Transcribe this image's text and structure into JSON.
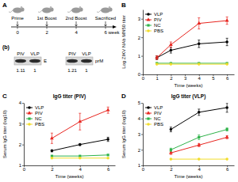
{
  "diagram": {
    "label": "A",
    "timeline": {
      "events": [
        "Prime",
        "1st Boost",
        "2nd Boost",
        "Sacrificed"
      ],
      "ticks": [
        "0",
        "2",
        "4",
        "6 week"
      ]
    },
    "blot": {
      "label": "(b)",
      "panels": [
        {
          "lanes": [
            "PIV",
            "VLP"
          ],
          "band": "E",
          "ratios": [
            1.11,
            1
          ]
        },
        {
          "lanes": [
            "PIV",
            "VLP"
          ],
          "band": "prM",
          "ratios": [
            1.21,
            1
          ]
        }
      ]
    }
  },
  "chart_data": [
    {
      "type": "line",
      "annotations": [
        "B"
      ],
      "x_label": "Time (weeks)",
      "y_label": "Log ZIKV NAb MN50 titer",
      "x": [
        1,
        2,
        4,
        6
      ],
      "xlim": [
        0,
        6.5
      ],
      "xticks": [
        0,
        1,
        2,
        3,
        4,
        5,
        6
      ],
      "ylim": [
        0,
        3.5
      ],
      "yticks": [
        0,
        1,
        2,
        3
      ],
      "legend": "top-left",
      "series": [
        {
          "name": "VLP",
          "color": "#000000",
          "marker": "circle",
          "values": [
            0.9,
            1.3,
            1.65,
            1.75
          ],
          "errors": [
            0.1,
            0.15,
            0.2,
            0.2
          ]
        },
        {
          "name": "PIV",
          "color": "#e8251f",
          "marker": "triangle",
          "values": [
            0.9,
            1.6,
            2.75,
            2.9
          ],
          "errors": [
            0.1,
            0.15,
            0.3,
            0.2
          ]
        },
        {
          "name": "NC",
          "color": "#2fb34a",
          "marker": "square",
          "values": [
            0.6,
            0.6,
            0.6,
            0.6
          ]
        },
        {
          "name": "PBS",
          "color": "#f2dd2c",
          "marker": "circle",
          "values": [
            0.55,
            0.55,
            0.55,
            0.55
          ]
        }
      ]
    },
    {
      "type": "line",
      "title": "IgG titer (PIV)",
      "annotations": [
        "C"
      ],
      "x_label": "Time (weeks)",
      "y_label": "Serum IgG titer (log10)",
      "x": [
        2,
        4,
        6
      ],
      "xlim": [
        0,
        6.5
      ],
      "xticks": [
        0,
        2,
        4,
        6
      ],
      "ylim": [
        1,
        4
      ],
      "yticks": [
        1,
        2,
        3,
        4
      ],
      "legend": "top-left",
      "series": [
        {
          "name": "VLP",
          "color": "#000000",
          "marker": "circle",
          "values": [
            1.7,
            2.0,
            2.25
          ],
          "errors": [
            0.05,
            0.05,
            0.1
          ]
        },
        {
          "name": "PIV",
          "color": "#e8251f",
          "marker": "triangle",
          "values": [
            2.3,
            3.1,
            3.65
          ],
          "errors": [
            0.25,
            0.4,
            0.15
          ]
        },
        {
          "name": "NC",
          "color": "#2fb34a",
          "marker": "square",
          "values": [
            1.45,
            1.45,
            1.5
          ]
        },
        {
          "name": "PBS",
          "color": "#f2dd2c",
          "marker": "circle",
          "values": [
            1.35,
            1.35,
            1.35
          ]
        }
      ]
    },
    {
      "type": "line",
      "title": "IgG titer (VLP)",
      "annotations": [
        "D"
      ],
      "x_label": "Time (weeks)",
      "y_label": "Serum IgG titer (log10)",
      "x": [
        2,
        4,
        6
      ],
      "xlim": [
        0,
        6.5
      ],
      "xticks": [
        0,
        2,
        4,
        6
      ],
      "ylim": [
        1,
        5
      ],
      "yticks": [
        1,
        2,
        3,
        4,
        5
      ],
      "legend": "top-left",
      "series": [
        {
          "name": "VLP",
          "color": "#000000",
          "marker": "circle",
          "values": [
            3.3,
            4.4,
            4.7
          ],
          "errors": [
            0.15,
            0.2,
            0.3
          ]
        },
        {
          "name": "PIV",
          "color": "#e8251f",
          "marker": "triangle",
          "values": [
            1.8,
            2.3,
            2.8
          ],
          "errors": [
            0.1,
            0.1,
            0.1
          ]
        },
        {
          "name": "NC",
          "color": "#2fb34a",
          "marker": "square",
          "values": [
            2.0,
            2.8,
            3.3
          ],
          "errors": [
            0.1,
            0.15,
            0.1
          ]
        },
        {
          "name": "PBS",
          "color": "#f2dd2c",
          "marker": "circle",
          "values": [
            1.4,
            1.4,
            1.4
          ]
        }
      ]
    }
  ]
}
